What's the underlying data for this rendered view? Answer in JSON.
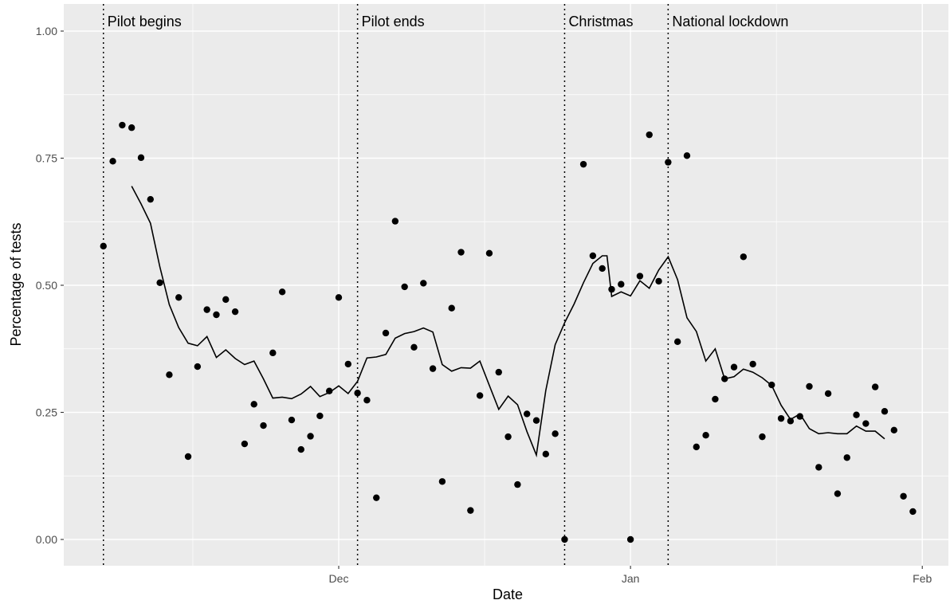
{
  "chart_data": {
    "type": "scatter",
    "xlabel": "Date",
    "ylabel": "Percentage of tests",
    "ylim": [
      0,
      1
    ],
    "xlim": [
      "2020-11-05",
      "2021-02-03"
    ],
    "grid": true,
    "legend": "none",
    "colors": {
      "panel": "#EBEBEB",
      "grid": "#FFFFFF",
      "points": "#000000",
      "line": "#000000",
      "vline": "#000000"
    },
    "x_ticks": [
      {
        "date": "2020-12-01",
        "label": "Dec"
      },
      {
        "date": "2021-01-01",
        "label": "Jan"
      },
      {
        "date": "2021-02-01",
        "label": "Feb"
      }
    ],
    "y_ticks": [
      {
        "value": 0.0,
        "label": "0.00"
      },
      {
        "value": 0.25,
        "label": "0.25"
      },
      {
        "value": 0.5,
        "label": "0.50"
      },
      {
        "value": 0.75,
        "label": "0.75"
      },
      {
        "value": 1.0,
        "label": "1.00"
      }
    ],
    "annotations": [
      {
        "date": "2020-11-06",
        "text": "Pilot begins"
      },
      {
        "date": "2020-12-03",
        "text": "Pilot ends"
      },
      {
        "date": "2020-12-25",
        "text": "Christmas"
      },
      {
        "date": "2021-01-05",
        "text": "National lockdown"
      }
    ],
    "series": [
      {
        "type": "scatter",
        "points": [
          [
            "2020-11-06",
            0.577
          ],
          [
            "2020-11-07",
            0.744
          ],
          [
            "2020-11-08",
            0.815
          ],
          [
            "2020-11-09",
            0.81
          ],
          [
            "2020-11-10",
            0.751
          ],
          [
            "2020-11-11",
            0.669
          ],
          [
            "2020-11-12",
            0.505
          ],
          [
            "2020-11-13",
            0.324
          ],
          [
            "2020-11-14",
            0.476
          ],
          [
            "2020-11-15",
            0.163
          ],
          [
            "2020-11-16",
            0.34
          ],
          [
            "2020-11-17",
            0.452
          ],
          [
            "2020-11-18",
            0.442
          ],
          [
            "2020-11-19",
            0.472
          ],
          [
            "2020-11-20",
            0.448
          ],
          [
            "2020-11-21",
            0.188
          ],
          [
            "2020-11-22",
            0.266
          ],
          [
            "2020-11-23",
            0.224
          ],
          [
            "2020-11-24",
            0.367
          ],
          [
            "2020-11-25",
            0.487
          ],
          [
            "2020-11-26",
            0.235
          ],
          [
            "2020-11-27",
            0.177
          ],
          [
            "2020-11-28",
            0.203
          ],
          [
            "2020-11-29",
            0.243
          ],
          [
            "2020-11-30",
            0.292
          ],
          [
            "2020-12-01",
            0.476
          ],
          [
            "2020-12-02",
            0.345
          ],
          [
            "2020-12-03",
            0.288
          ],
          [
            "2020-12-04",
            0.274
          ],
          [
            "2020-12-05",
            0.082
          ],
          [
            "2020-12-06",
            0.406
          ],
          [
            "2020-12-07",
            0.626
          ],
          [
            "2020-12-08",
            0.497
          ],
          [
            "2020-12-09",
            0.378
          ],
          [
            "2020-12-10",
            0.504
          ],
          [
            "2020-12-11",
            0.336
          ],
          [
            "2020-12-12",
            0.114
          ],
          [
            "2020-12-13",
            0.455
          ],
          [
            "2020-12-14",
            0.565
          ],
          [
            "2020-12-15",
            0.057
          ],
          [
            "2020-12-16",
            0.283
          ],
          [
            "2020-12-17",
            0.563
          ],
          [
            "2020-12-18",
            0.329
          ],
          [
            "2020-12-19",
            0.202
          ],
          [
            "2020-12-20",
            0.108
          ],
          [
            "2020-12-21",
            0.247
          ],
          [
            "2020-12-22",
            0.234
          ],
          [
            "2020-12-23",
            0.168
          ],
          [
            "2020-12-24",
            0.208
          ],
          [
            "2020-12-25",
            0.0
          ],
          [
            "2020-12-27",
            0.738
          ],
          [
            "2020-12-28",
            0.558
          ],
          [
            "2020-12-29",
            0.533
          ],
          [
            "2020-12-30",
            0.492
          ],
          [
            "2020-12-31",
            0.502
          ],
          [
            "2021-01-01",
            0.0
          ],
          [
            "2021-01-02",
            0.518
          ],
          [
            "2021-01-03",
            0.796
          ],
          [
            "2021-01-04",
            0.508
          ],
          [
            "2021-01-05",
            0.742
          ],
          [
            "2021-01-06",
            0.389
          ],
          [
            "2021-01-07",
            0.755
          ],
          [
            "2021-01-08",
            0.182
          ],
          [
            "2021-01-09",
            0.205
          ],
          [
            "2021-01-10",
            0.276
          ],
          [
            "2021-01-11",
            0.316
          ],
          [
            "2021-01-12",
            0.339
          ],
          [
            "2021-01-13",
            0.556
          ],
          [
            "2021-01-14",
            0.345
          ],
          [
            "2021-01-15",
            0.202
          ],
          [
            "2021-01-16",
            0.304
          ],
          [
            "2021-01-17",
            0.238
          ],
          [
            "2021-01-18",
            0.233
          ],
          [
            "2021-01-19",
            0.242
          ],
          [
            "2021-01-20",
            0.301
          ],
          [
            "2021-01-21",
            0.142
          ],
          [
            "2021-01-22",
            0.287
          ],
          [
            "2021-01-23",
            0.09
          ],
          [
            "2021-01-24",
            0.161
          ],
          [
            "2021-01-25",
            0.245
          ],
          [
            "2021-01-26",
            0.228
          ],
          [
            "2021-01-27",
            0.3
          ],
          [
            "2021-01-28",
            0.252
          ],
          [
            "2021-01-29",
            0.215
          ],
          [
            "2021-01-30",
            0.085
          ],
          [
            "2021-01-31",
            0.055
          ]
        ]
      },
      {
        "type": "line",
        "points": [
          [
            "2020-11-09",
            0.695
          ],
          [
            "2020-11-10",
            0.66
          ],
          [
            "2020-11-11",
            0.622
          ],
          [
            "2020-11-12",
            0.536
          ],
          [
            "2020-11-13",
            0.462
          ],
          [
            "2020-11-14",
            0.417
          ],
          [
            "2020-11-15",
            0.386
          ],
          [
            "2020-11-16",
            0.381
          ],
          [
            "2020-11-17",
            0.399
          ],
          [
            "2020-11-18",
            0.358
          ],
          [
            "2020-11-19",
            0.373
          ],
          [
            "2020-11-20",
            0.356
          ],
          [
            "2020-11-21",
            0.344
          ],
          [
            "2020-11-22",
            0.351
          ],
          [
            "2020-11-23",
            0.316
          ],
          [
            "2020-11-24",
            0.278
          ],
          [
            "2020-11-25",
            0.28
          ],
          [
            "2020-11-26",
            0.277
          ],
          [
            "2020-11-27",
            0.286
          ],
          [
            "2020-11-28",
            0.301
          ],
          [
            "2020-11-29",
            0.281
          ],
          [
            "2020-11-30",
            0.289
          ],
          [
            "2020-12-01",
            0.302
          ],
          [
            "2020-12-02",
            0.287
          ],
          [
            "2020-12-03",
            0.311
          ],
          [
            "2020-12-04",
            0.357
          ],
          [
            "2020-12-05",
            0.359
          ],
          [
            "2020-12-06",
            0.364
          ],
          [
            "2020-12-07",
            0.396
          ],
          [
            "2020-12-08",
            0.405
          ],
          [
            "2020-12-09",
            0.409
          ],
          [
            "2020-12-10",
            0.416
          ],
          [
            "2020-12-11",
            0.408
          ],
          [
            "2020-12-12",
            0.344
          ],
          [
            "2020-12-13",
            0.331
          ],
          [
            "2020-12-14",
            0.338
          ],
          [
            "2020-12-15",
            0.337
          ],
          [
            "2020-12-16",
            0.351
          ],
          [
            "2020-12-17",
            0.303
          ],
          [
            "2020-12-18",
            0.256
          ],
          [
            "2020-12-19",
            0.282
          ],
          [
            "2020-12-20",
            0.265
          ],
          [
            "2020-12-21",
            0.212
          ],
          [
            "2020-12-22",
            0.166
          ],
          [
            "2020-12-23",
            0.293
          ],
          [
            "2020-12-24",
            0.383
          ],
          [
            "2020-12-25",
            0.426
          ],
          [
            "2020-12-26",
            0.463
          ],
          [
            "2020-12-27",
            0.505
          ],
          [
            "2020-12-28",
            0.543
          ],
          [
            "2020-12-29",
            0.558
          ],
          [
            "2020-12-29.5",
            0.558
          ],
          [
            "2020-12-30",
            0.478
          ],
          [
            "2020-12-31",
            0.487
          ],
          [
            "2021-01-01",
            0.479
          ],
          [
            "2021-01-02",
            0.509
          ],
          [
            "2021-01-03",
            0.494
          ],
          [
            "2021-01-04",
            0.53
          ],
          [
            "2021-01-05",
            0.556
          ],
          [
            "2021-01-06",
            0.511
          ],
          [
            "2021-01-07",
            0.436
          ],
          [
            "2021-01-08",
            0.409
          ],
          [
            "2021-01-09",
            0.351
          ],
          [
            "2021-01-10",
            0.375
          ],
          [
            "2021-01-11",
            0.316
          ],
          [
            "2021-01-12",
            0.32
          ],
          [
            "2021-01-13",
            0.335
          ],
          [
            "2021-01-14",
            0.329
          ],
          [
            "2021-01-15",
            0.318
          ],
          [
            "2021-01-16",
            0.303
          ],
          [
            "2021-01-17",
            0.264
          ],
          [
            "2021-01-18",
            0.236
          ],
          [
            "2021-01-19",
            0.247
          ],
          [
            "2021-01-20",
            0.218
          ],
          [
            "2021-01-21",
            0.208
          ],
          [
            "2021-01-22",
            0.21
          ],
          [
            "2021-01-23",
            0.208
          ],
          [
            "2021-01-24",
            0.208
          ],
          [
            "2021-01-25",
            0.223
          ],
          [
            "2021-01-26",
            0.213
          ],
          [
            "2021-01-27",
            0.213
          ],
          [
            "2021-01-28",
            0.198
          ]
        ]
      }
    ]
  }
}
